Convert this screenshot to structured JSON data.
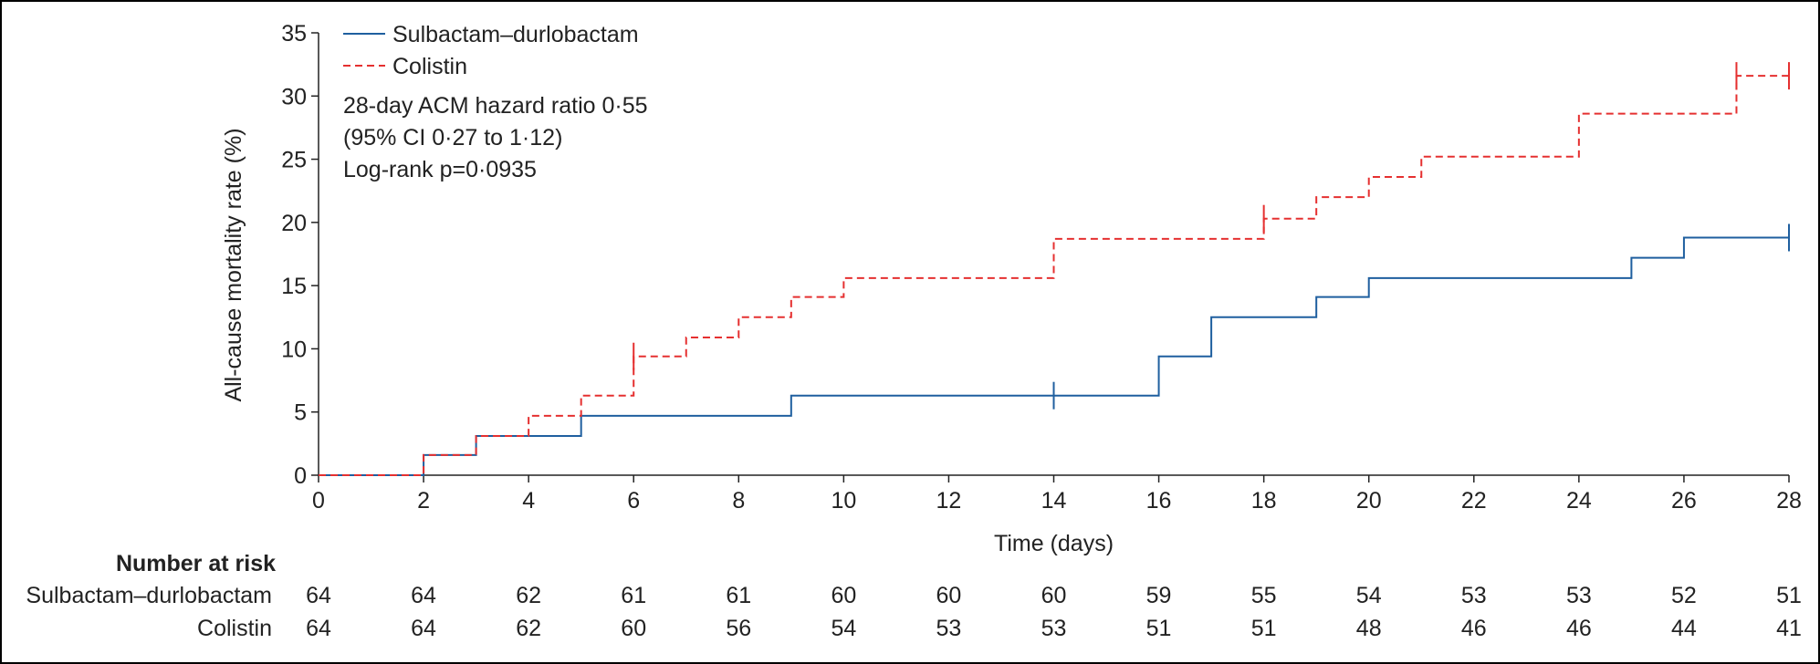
{
  "chart_data": {
    "type": "line",
    "step": true,
    "xlabel": "Time (days)",
    "ylabel": "All-cause mortality rate (%)",
    "xlim": [
      0,
      28
    ],
    "ylim": [
      0,
      35
    ],
    "x_ticks": [
      0,
      2,
      4,
      6,
      8,
      10,
      12,
      14,
      16,
      18,
      20,
      22,
      24,
      26,
      28
    ],
    "y_ticks": [
      0,
      5,
      10,
      15,
      20,
      25,
      30,
      35
    ],
    "grid": false,
    "legend_position": "top-left",
    "series": [
      {
        "name": "Sulbactam–durlobactam",
        "color": "#1f5f9f",
        "style": "solid",
        "x": [
          0,
          2,
          3,
          5,
          9,
          16,
          17,
          19,
          20,
          25,
          26,
          28
        ],
        "y": [
          0,
          1.6,
          3.1,
          4.7,
          6.3,
          9.4,
          12.5,
          14.1,
          15.6,
          17.2,
          18.8,
          18.8
        ],
        "censor_x": [
          14,
          28
        ]
      },
      {
        "name": "Colistin",
        "color": "#e53030",
        "style": "dashed",
        "x": [
          0,
          2,
          3,
          4,
          5,
          6,
          7,
          8,
          9,
          10,
          14,
          18,
          19,
          20,
          21,
          24,
          27,
          28
        ],
        "y": [
          0,
          1.6,
          3.1,
          4.7,
          6.3,
          9.4,
          10.9,
          12.5,
          14.1,
          15.6,
          18.7,
          20.3,
          22.0,
          23.6,
          25.2,
          28.6,
          31.6,
          31.6
        ],
        "censor_x": [
          6,
          18,
          27,
          28
        ]
      }
    ],
    "annotations": [
      "28-day ACM hazard ratio 0·55",
      "(95% CI 0·27 to 1·12)",
      "Log-rank p=0·0935"
    ],
    "number_at_risk": {
      "title": "Number at risk",
      "times": [
        0,
        2,
        4,
        6,
        8,
        10,
        12,
        14,
        16,
        18,
        20,
        22,
        24,
        26,
        28
      ],
      "rows": [
        {
          "label": "Sulbactam–durlobactam",
          "values": [
            64,
            64,
            62,
            61,
            61,
            60,
            60,
            60,
            59,
            55,
            54,
            53,
            53,
            52,
            51
          ]
        },
        {
          "label": "Colistin",
          "values": [
            64,
            64,
            62,
            60,
            56,
            54,
            53,
            53,
            51,
            51,
            48,
            46,
            46,
            44,
            41
          ]
        }
      ]
    }
  }
}
